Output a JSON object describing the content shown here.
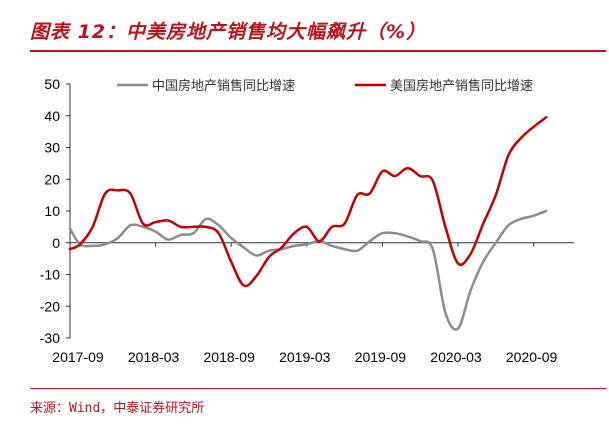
{
  "header": {
    "title": "图表 12：中美房地产销售均大幅飙升（%）",
    "source": "来源：Wind，中泰证券研究所"
  },
  "colors": {
    "accent": "#b7141b",
    "china_series": "#8c8c8c",
    "us_series": "#c00000",
    "axis": "#333333"
  },
  "chart_data": {
    "type": "line",
    "title": "图表 12：中美房地产销售均大幅飙升（%）",
    "x_tick_labels": [
      "2017-09",
      "2018-03",
      "2018-09",
      "2019-03",
      "2019-09",
      "2020-03",
      "2020-09"
    ],
    "x_tick_months": [
      0,
      6,
      12,
      18,
      24,
      30,
      36
    ],
    "ylim": [
      -30,
      50
    ],
    "y_ticks": [
      50,
      40,
      30,
      20,
      10,
      0,
      -10,
      -20,
      -30
    ],
    "grid": false,
    "legend_position": "top",
    "series": [
      {
        "name": "中国房地产销售同比增速",
        "color": "#8c8c8c",
        "x_months": [
          -0.8,
          0,
          1,
          2,
          3,
          4,
          5,
          6,
          7,
          8,
          9,
          10,
          11,
          12,
          13,
          14,
          15,
          16,
          17,
          18,
          19,
          20,
          21,
          22,
          23,
          24,
          25,
          26,
          27,
          28,
          29,
          30,
          31,
          32,
          33,
          34,
          35,
          36,
          37
        ],
        "values": [
          4.5,
          -0.5,
          -1.0,
          -0.5,
          1.5,
          5.5,
          5.0,
          3.5,
          1.0,
          2.5,
          3.0,
          7.5,
          5.5,
          1.5,
          -1.5,
          -4.0,
          -2.5,
          -2.0,
          -1.0,
          -0.5,
          0.5,
          -1.0,
          -2.0,
          -2.5,
          0.5,
          3.0,
          3.0,
          2.0,
          0.5,
          -2.0,
          -22.0,
          -27.0,
          -15.0,
          -6.0,
          0.0,
          5.5,
          7.5,
          8.5,
          10.0
        ]
      },
      {
        "name": "美国房地产销售同比增速",
        "color": "#c00000",
        "x_months": [
          -0.8,
          0,
          1,
          2,
          3,
          4,
          5,
          6,
          7,
          8,
          9,
          10,
          11,
          12,
          13,
          14,
          15,
          16,
          17,
          18,
          19,
          20,
          21,
          22,
          23,
          24,
          25,
          26,
          27,
          28,
          29,
          30,
          31,
          32,
          33,
          34,
          35,
          36,
          37
        ],
        "values": [
          -2.0,
          -0.5,
          5.0,
          15.5,
          16.5,
          15.5,
          6.0,
          6.5,
          7.0,
          5.0,
          5.0,
          5.0,
          3.0,
          -6.0,
          -13.5,
          -10.5,
          -4.5,
          -1.5,
          3.0,
          5.0,
          0.5,
          5.0,
          6.0,
          15.0,
          15.5,
          22.5,
          21.0,
          23.5,
          21.0,
          19.5,
          5.0,
          -6.5,
          -3.5,
          6.0,
          15.0,
          27.5,
          33.0,
          36.5,
          39.5
        ]
      }
    ]
  }
}
